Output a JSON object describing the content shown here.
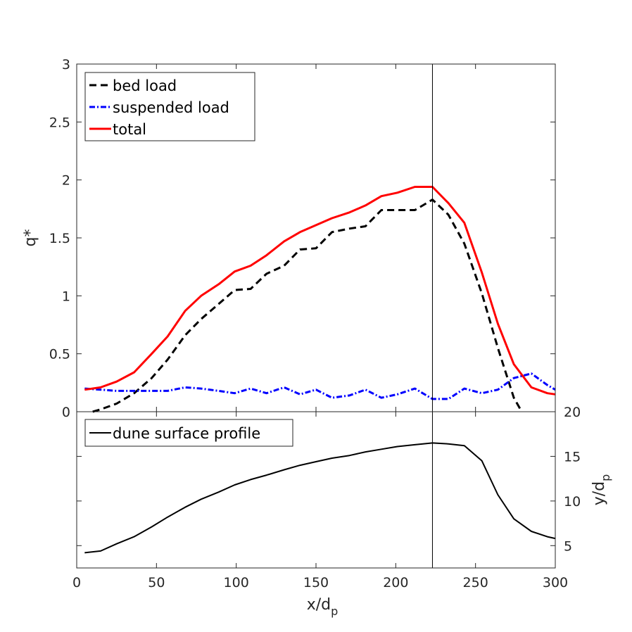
{
  "chart_data": [
    {
      "type": "line",
      "panel": "top",
      "xlabel": "",
      "ylabel": "q*",
      "xlim": [
        0,
        300
      ],
      "ylim": [
        0,
        3
      ],
      "yticks": [
        "0",
        "0.5",
        "1",
        "1.5",
        "2",
        "2.5",
        "3"
      ],
      "ytick_values": [
        0,
        0.5,
        1,
        1.5,
        2,
        2.5,
        3
      ],
      "legend_location": "top-left",
      "vertical_line_x": 223,
      "series": [
        {
          "name": "bed load",
          "style": "dashed",
          "color": "#000000",
          "x": [
            10,
            15,
            25,
            36,
            47,
            57,
            68,
            78,
            89,
            99,
            109,
            119,
            130,
            140,
            150,
            160,
            171,
            181,
            191,
            201,
            212,
            223,
            233,
            243,
            254,
            264,
            274,
            279
          ],
          "y": [
            0.0,
            0.02,
            0.07,
            0.16,
            0.29,
            0.45,
            0.66,
            0.8,
            0.93,
            1.05,
            1.06,
            1.19,
            1.26,
            1.4,
            1.41,
            1.55,
            1.58,
            1.6,
            1.74,
            1.74,
            1.74,
            1.83,
            1.7,
            1.45,
            1.02,
            0.55,
            0.12,
            0.0
          ]
        },
        {
          "name": "suspended load",
          "style": "dash-dot",
          "color": "#0000ff",
          "x": [
            5,
            15,
            25,
            36,
            47,
            57,
            68,
            78,
            89,
            99,
            109,
            119,
            130,
            140,
            150,
            160,
            171,
            181,
            191,
            201,
            212,
            223,
            233,
            243,
            254,
            264,
            274,
            285,
            295,
            300
          ],
          "y": [
            0.2,
            0.19,
            0.18,
            0.18,
            0.18,
            0.18,
            0.21,
            0.2,
            0.18,
            0.16,
            0.2,
            0.16,
            0.21,
            0.15,
            0.19,
            0.12,
            0.14,
            0.19,
            0.12,
            0.15,
            0.2,
            0.11,
            0.11,
            0.2,
            0.16,
            0.19,
            0.29,
            0.33,
            0.23,
            0.19
          ]
        },
        {
          "name": "total",
          "style": "solid",
          "color": "#ff0000",
          "x": [
            5,
            15,
            25,
            36,
            47,
            57,
            68,
            78,
            89,
            99,
            109,
            119,
            130,
            140,
            150,
            160,
            171,
            181,
            191,
            201,
            212,
            223,
            233,
            243,
            254,
            264,
            274,
            285,
            295,
            300
          ],
          "y": [
            0.19,
            0.21,
            0.26,
            0.34,
            0.5,
            0.65,
            0.87,
            1.0,
            1.1,
            1.21,
            1.26,
            1.35,
            1.47,
            1.55,
            1.61,
            1.67,
            1.72,
            1.78,
            1.86,
            1.89,
            1.94,
            1.94,
            1.8,
            1.63,
            1.2,
            0.76,
            0.41,
            0.21,
            0.16,
            0.15
          ]
        }
      ]
    },
    {
      "type": "line",
      "panel": "bottom",
      "xlabel": "x/d_p",
      "ylabel": "y/d_p",
      "xlim": [
        0,
        300
      ],
      "ylim": [
        2.5,
        20
      ],
      "xticks": [
        "0",
        "50",
        "100",
        "150",
        "200",
        "250",
        "300"
      ],
      "xtick_values": [
        0,
        50,
        100,
        150,
        200,
        250,
        300
      ],
      "yticks": [
        "5",
        "10",
        "15",
        "20"
      ],
      "ytick_values": [
        5,
        10,
        15,
        20
      ],
      "legend_location": "top-left",
      "vertical_line_x": 223,
      "series": [
        {
          "name": "dune surface profile",
          "style": "solid",
          "color": "#000000",
          "x": [
            5,
            15,
            25,
            36,
            47,
            57,
            68,
            78,
            89,
            99,
            109,
            119,
            130,
            140,
            150,
            160,
            171,
            181,
            191,
            201,
            212,
            223,
            233,
            243,
            254,
            264,
            274,
            285,
            295,
            300
          ],
          "y": [
            4.2,
            4.4,
            5.2,
            6.0,
            7.1,
            8.2,
            9.3,
            10.2,
            11.0,
            11.8,
            12.4,
            12.9,
            13.5,
            14.0,
            14.4,
            14.8,
            15.1,
            15.5,
            15.8,
            16.1,
            16.3,
            16.5,
            16.4,
            16.2,
            14.5,
            10.7,
            8.0,
            6.6,
            6.0,
            5.8
          ]
        }
      ]
    }
  ]
}
